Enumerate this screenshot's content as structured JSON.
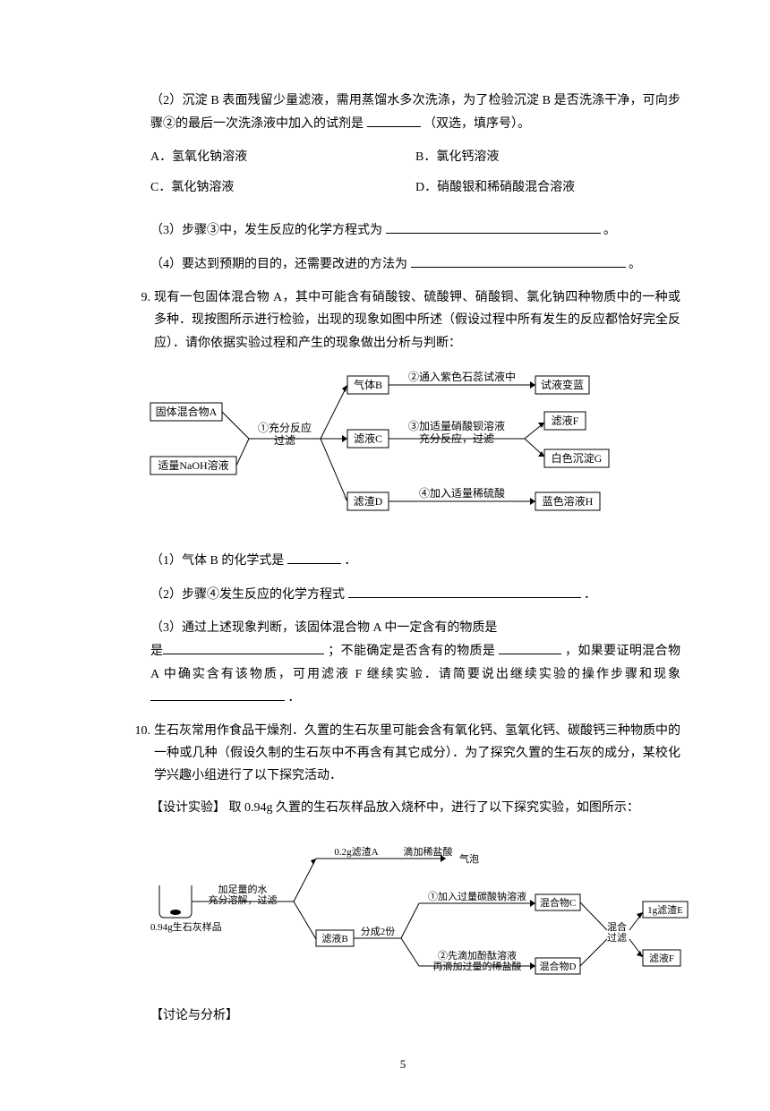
{
  "q8": {
    "p2": "（2）沉淀 B 表面残留少量滤液，需用蒸馏水多次洗涤，为了检验沉淀 B 是否洗涤干净，可向步骤②的最后一次洗涤液中加入的试剂是",
    "p2_tail": "（双选，填序号）。",
    "optA": "A．氢氧化钠溶液",
    "optB": "B．氯化钙溶液",
    "optC": "C．氯化钠溶液",
    "optD": "D．硝酸银和稀硝酸混合溶液",
    "p3": "（3）步骤③中，发生反应的化学方程式为",
    "p3_tail": "。",
    "p4": "（4）要达到预期的目的，还需要改进的方法为",
    "p4_tail": "。"
  },
  "q9": {
    "intro": "现有一包固体混合物 A，其中可能含有硝酸铵、硫酸钾、硝酸铜、氯化钠四种物质中的一种或 多种．现按图所示进行检验，出现的现象如图中所述（假设过程中所有发生的反应都恰好完全反应）．请你依据实验过程和产生的现象做出分析与判断：",
    "diagram": {
      "box_solid_a": "固体混合物A",
      "box_naoh": "适量NaOH溶液",
      "step1": "①充分反应\n过滤",
      "gas_b": "气体B",
      "step2": "②通入紫色石蕊试液中",
      "res2": "试液变蓝",
      "filtrate_c": "滤液C",
      "step3": "③加适量硝酸钡溶液\n充分反应，过滤",
      "res3a": "滤液F",
      "res3b": "白色沉淀G",
      "residue_d": "滤渣D",
      "step4": "④加入适量稀硫酸",
      "res4": "蓝色溶液H",
      "line_color": "#000000",
      "fontsize": 12
    },
    "p1": "（1）气体 B 的化学式是",
    "p1_tail": "．",
    "p2": "（2）步骤④发生反应的化学方程式",
    "p2_tail": "．",
    "p3a": "（3）通过上述现象判断，该固体混合物 A 中一定含有的物质是",
    "p3b": "；不能确定是否含有的物质是",
    "p3c": "，如果要证明混合物 A 中确实含有该物质，可用滤液 F 继续实验．请简要说出继续实验的操作步骤和现象",
    "p3_tail": "．"
  },
  "q10": {
    "intro": "生石灰常用作食品干燥剂．久置的生石灰里可能会含有氧化钙、氢氧化钙、碳酸钙三种物质中的一种或几种（假设久制的生石灰中不再含有其它成分）．为了探究久置的生石灰的成分，某校化学兴趣小组进行了以下探究活动．",
    "design_label": "【设计实验】",
    "design_text": "取 0.94g 久置的生石灰样品放入烧杯中，进行了以下探究实验，如图所示：",
    "diagram": {
      "sample": "0.94g生石灰样品",
      "step_water": "加足量的水\n充分溶解，过滤",
      "residue_a_line": "0.2g滤渣A",
      "residue_a_step": "滴加稀盐酸",
      "residue_a_res": "气泡",
      "filtrate_b": "滤液B",
      "split": "分成2份",
      "path1": "①加入过量碳酸钠溶液",
      "mix_c": "混合物C",
      "res_e": "1g滤渣E",
      "mix_step": "混合\n过滤",
      "path2": "②先滴加酚酞溶液\n再滴加过量的稀盐酸",
      "mix_d": "混合物D",
      "res_f": "滤液F",
      "line_color": "#000000",
      "fontsize": 11
    },
    "discuss_label": "【讨论与分析】"
  },
  "page_num": "5",
  "num9": "9.",
  "num10": "10."
}
